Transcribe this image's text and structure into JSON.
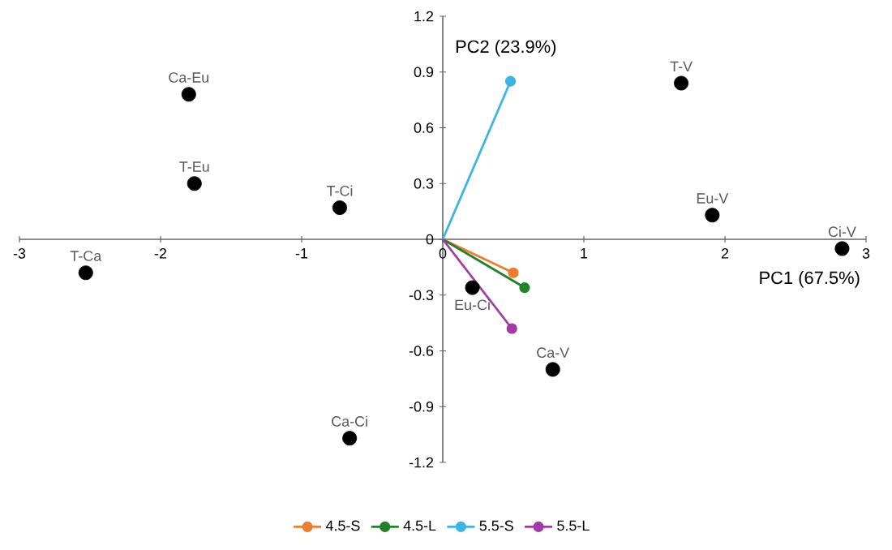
{
  "chart_data": {
    "type": "scatter",
    "xlabel": "PC1 (67.5%)",
    "ylabel": "PC2 (23.9%)",
    "series": [
      {
        "type": "scatter",
        "color": "#000000",
        "x": [
          -1.8,
          -1.76,
          -0.73,
          1.69,
          1.91,
          2.83,
          -2.53,
          0.21,
          0.78,
          -0.66
        ],
        "values": [
          0.78,
          0.3,
          0.17,
          0.84,
          0.13,
          -0.05,
          -0.18,
          -0.26,
          -0.7,
          -1.07
        ]
      },
      {
        "type": "line",
        "name": "4.5-S",
        "color": "#ed7d31",
        "x": [
          0,
          0.5
        ],
        "values": [
          0,
          -0.18
        ]
      },
      {
        "type": "line",
        "name": "4.5-L",
        "color": "#22822a",
        "x": [
          0,
          0.58
        ],
        "values": [
          0,
          -0.26
        ]
      },
      {
        "type": "line",
        "name": "5.5-S",
        "color": "#3cb4e6",
        "x": [
          0,
          0.48
        ],
        "values": [
          0,
          0.85
        ]
      },
      {
        "type": "line",
        "name": "5.5-L",
        "color": "#a23aa6",
        "x": [
          0,
          0.49
        ],
        "values": [
          0,
          -0.48
        ]
      }
    ],
    "annotations": [
      {
        "text": "Ca-Eu",
        "x": -1.8,
        "y": 0.78
      },
      {
        "text": "T-Eu",
        "x": -1.76,
        "y": 0.3
      },
      {
        "text": "T-Ci",
        "x": -0.73,
        "y": 0.17
      },
      {
        "text": "T-V",
        "x": 1.69,
        "y": 0.84
      },
      {
        "text": "Eu-V",
        "x": 1.91,
        "y": 0.13
      },
      {
        "text": "Ci-V",
        "x": 2.83,
        "y": -0.05
      },
      {
        "text": "T-Ca",
        "x": -2.53,
        "y": -0.18
      },
      {
        "text": "Eu-Ci",
        "x": 0.21,
        "y": -0.26
      },
      {
        "text": "Ca-V",
        "x": 0.78,
        "y": -0.7
      },
      {
        "text": "Ca-Ci",
        "x": -0.66,
        "y": -1.07
      }
    ],
    "xlim": [
      -3,
      3
    ],
    "xticks": [
      -3,
      -2,
      -1,
      0,
      1,
      2,
      3
    ],
    "ylim": [
      -1.2,
      1.2
    ],
    "yticks": [
      -1.2,
      -0.9,
      -0.6,
      -0.3,
      0,
      0.3,
      0.6,
      0.9,
      1.2
    ],
    "marker": "circle",
    "legend": "bottom",
    "grid": false
  }
}
